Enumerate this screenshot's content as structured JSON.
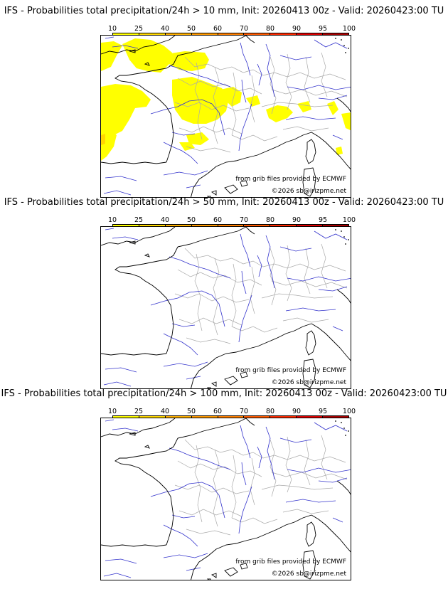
{
  "panels": [
    {
      "title": "IFS - Probabilities total precipitation/24h > 10 mm, Init: 20260413 00z - Valid: 20260423:00 TU",
      "has_precip": true,
      "credit_source": "from grib files provided by ECMWF",
      "credit_copyright": "©2026 sb@irizpme.net"
    },
    {
      "title": "IFS - Probabilities total precipitation/24h > 50 mm, Init: 20260413 00z - Valid: 20260423:00 TU",
      "has_precip": false,
      "credit_source": "from grib files provided by ECMWF",
      "credit_copyright": "©2026 sb@irizpme.net"
    },
    {
      "title": "IFS - Probabilities total precipitation/24h > 100 mm, Init: 20260413 00z - Valid: 20260423:00 TU",
      "has_precip": false,
      "credit_source": "from grib files provided by ECMWF",
      "credit_copyright": "©2026 sb@irizpme.net"
    }
  ],
  "legend": {
    "labels": [
      "10",
      "25",
      "40",
      "50",
      "60",
      "70",
      "80",
      "90",
      "95",
      "100"
    ],
    "colors": [
      "#ffff00",
      "#ffd700",
      "#ffb000",
      "#ff9900",
      "#ff7f00",
      "#ff5a00",
      "#ff2a00",
      "#dd0000",
      "#a50000",
      "#6b0000"
    ]
  },
  "map_colors": {
    "coast": "#000000",
    "rivers": "#3333cc",
    "borders": "#aaaaaa",
    "precip_low": "#ffff00",
    "precip_edge": "#ffd700"
  }
}
